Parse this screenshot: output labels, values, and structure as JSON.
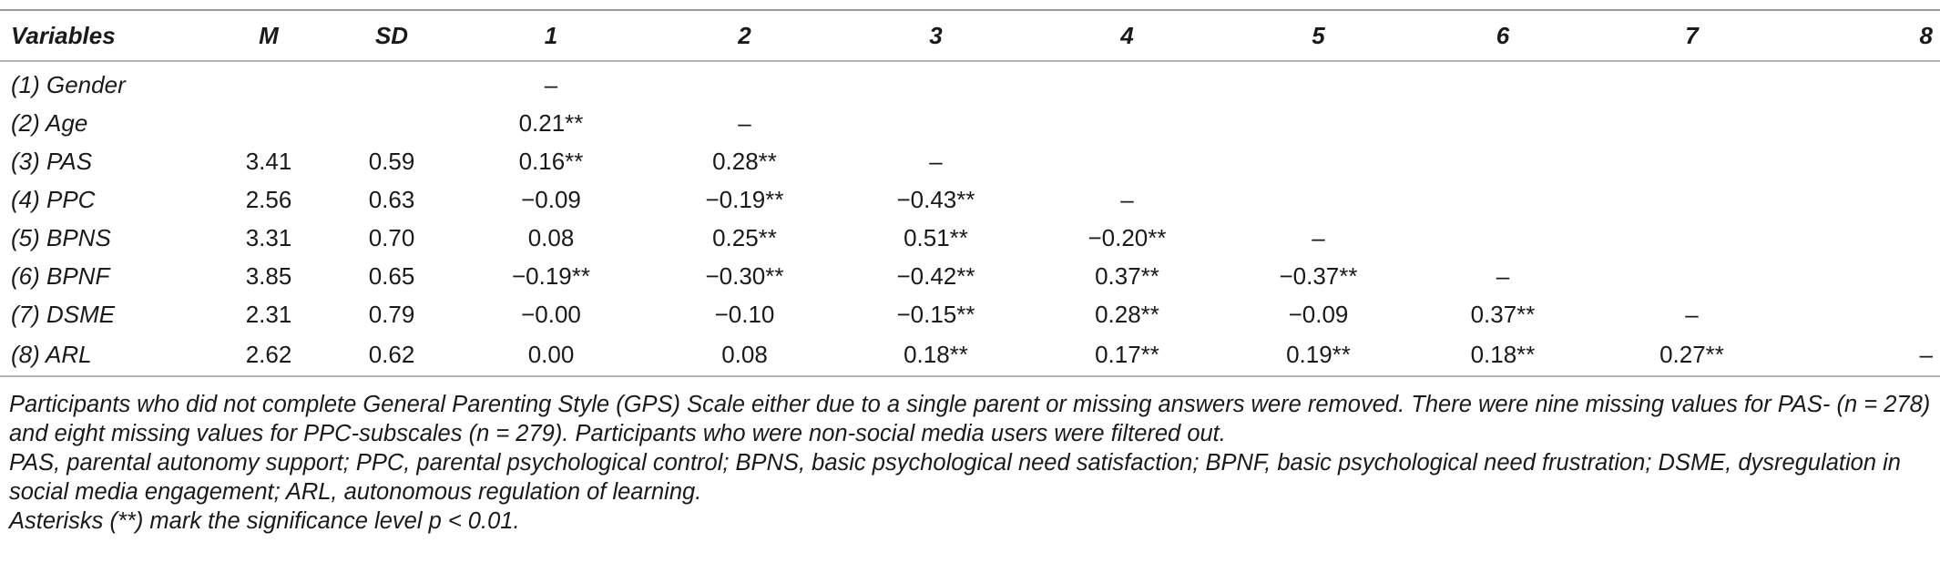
{
  "table": {
    "headers": [
      "Variables",
      "M",
      "SD",
      "1",
      "2",
      "3",
      "4",
      "5",
      "6",
      "7",
      "8"
    ],
    "rows": [
      {
        "variable": "(1) Gender",
        "m": "",
        "sd": "",
        "cells": [
          "–",
          "",
          "",
          "",
          "",
          "",
          "",
          ""
        ]
      },
      {
        "variable": "(2) Age",
        "m": "",
        "sd": "",
        "cells": [
          "0.21**",
          "–",
          "",
          "",
          "",
          "",
          "",
          ""
        ]
      },
      {
        "variable": "(3) PAS",
        "m": "3.41",
        "sd": "0.59",
        "cells": [
          "0.16**",
          "0.28**",
          "–",
          "",
          "",
          "",
          "",
          ""
        ]
      },
      {
        "variable": "(4) PPC",
        "m": "2.56",
        "sd": "0.63",
        "cells": [
          "−0.09",
          "−0.19**",
          "−0.43**",
          "–",
          "",
          "",
          "",
          ""
        ]
      },
      {
        "variable": "(5) BPNS",
        "m": "3.31",
        "sd": "0.70",
        "cells": [
          "0.08",
          "0.25**",
          "0.51**",
          "−0.20**",
          "–",
          "",
          "",
          ""
        ]
      },
      {
        "variable": "(6) BPNF",
        "m": "3.85",
        "sd": "0.65",
        "cells": [
          "−0.19**",
          "−0.30**",
          "−0.42**",
          "0.37**",
          "−0.37**",
          "–",
          "",
          ""
        ]
      },
      {
        "variable": "(7) DSME",
        "m": "2.31",
        "sd": "0.79",
        "cells": [
          "−0.00",
          "−0.10",
          "−0.15**",
          "0.28**",
          "−0.09",
          "0.37**",
          "–",
          ""
        ]
      },
      {
        "variable": "(8) ARL",
        "m": "2.62",
        "sd": "0.62",
        "cells": [
          "0.00",
          "0.08",
          "0.18**",
          "0.17**",
          "0.19**",
          "0.18**",
          "0.27**",
          "–"
        ]
      }
    ]
  },
  "notes": {
    "line1": "Participants who did not complete General Parenting Style (GPS) Scale either due to a single parent or missing answers were removed. There were nine missing values for PAS- (n = 278) and eight missing values for PPC-subscales (n = 279). Participants who were non-social media users were filtered out.",
    "line2": "PAS, parental autonomy support; PPC, parental psychological control; BPNS, basic psychological need satisfaction; BPNF, basic psychological need frustration; DSME, dysregulation in social media engagement; ARL, autonomous regulation of learning.",
    "line3": "Asterisks (**) mark the significance level p < 0.01."
  }
}
